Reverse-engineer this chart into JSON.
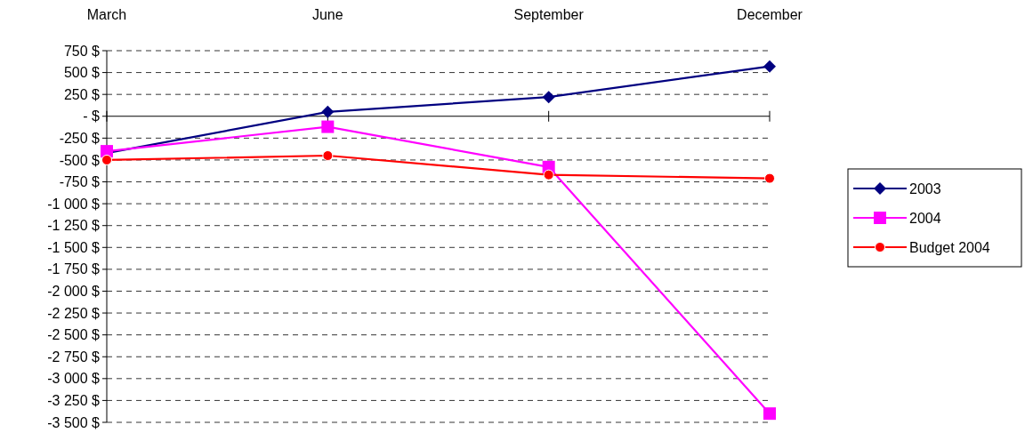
{
  "chart_data": {
    "type": "line",
    "categories": [
      "March",
      "June",
      "September",
      "December"
    ],
    "series": [
      {
        "name": "2003",
        "color": "#000080",
        "marker": "diamond",
        "values": [
          -420,
          50,
          220,
          570
        ]
      },
      {
        "name": "2004",
        "color": "#ff00ff",
        "marker": "square",
        "values": [
          -400,
          -120,
          -580,
          -3400
        ]
      },
      {
        "name": "Budget 2004",
        "color": "#ff0000",
        "marker": "circle",
        "values": [
          -500,
          -450,
          -670,
          -710
        ]
      }
    ],
    "ylim": [
      -3500,
      750
    ],
    "yticks": [
      {
        "value": 750,
        "label": "750 $"
      },
      {
        "value": 500,
        "label": "500 $"
      },
      {
        "value": 250,
        "label": "250 $"
      },
      {
        "value": 0,
        "label": "-   $"
      },
      {
        "value": -250,
        "label": "-250 $"
      },
      {
        "value": -500,
        "label": "-500 $"
      },
      {
        "value": -750,
        "label": "-750 $"
      },
      {
        "value": -1000,
        "label": "-1 000 $"
      },
      {
        "value": -1250,
        "label": "-1 250 $"
      },
      {
        "value": -1500,
        "label": "-1 500 $"
      },
      {
        "value": -1750,
        "label": "-1 750 $"
      },
      {
        "value": -2000,
        "label": "-2 000 $"
      },
      {
        "value": -2250,
        "label": "-2 250 $"
      },
      {
        "value": -2500,
        "label": "-2 500 $"
      },
      {
        "value": -2750,
        "label": "-2 750 $"
      },
      {
        "value": -3000,
        "label": "-3 000 $"
      },
      {
        "value": -3250,
        "label": "-3 250 $"
      },
      {
        "value": -3500,
        "label": "-3 500 $"
      }
    ],
    "grid": "y",
    "legend": "right"
  }
}
